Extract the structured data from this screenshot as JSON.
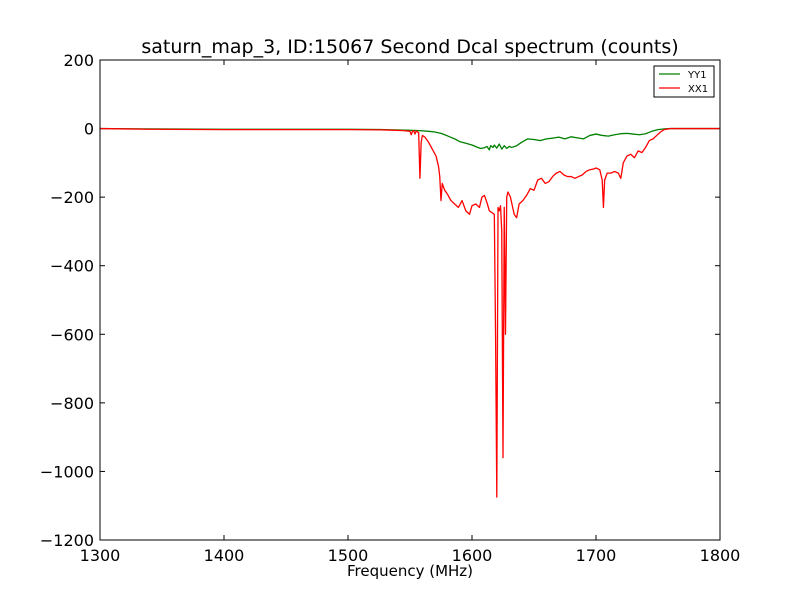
{
  "chart_data": {
    "type": "line",
    "title": "saturn_map_3, ID:15067 Second Dcal spectrum (counts)",
    "xlabel": "Frequency (MHz)",
    "ylabel": "",
    "xlim": [
      1300,
      1800
    ],
    "ylim": [
      -1200,
      200
    ],
    "xticks": [
      1300,
      1400,
      1500,
      1600,
      1700,
      1800
    ],
    "yticks": [
      200,
      0,
      -200,
      -400,
      -600,
      -800,
      -1000,
      -1200
    ],
    "grid": false,
    "legend_position": "top-right",
    "series": [
      {
        "name": "YY1",
        "color": "#008000",
        "points": [
          [
            1300,
            0
          ],
          [
            1340,
            -1
          ],
          [
            1400,
            -2
          ],
          [
            1450,
            -2
          ],
          [
            1500,
            -2
          ],
          [
            1530,
            -3
          ],
          [
            1550,
            -5
          ],
          [
            1558,
            -6
          ],
          [
            1565,
            -8
          ],
          [
            1570,
            -10
          ],
          [
            1575,
            -14
          ],
          [
            1578,
            -18
          ],
          [
            1582,
            -24
          ],
          [
            1586,
            -30
          ],
          [
            1590,
            -38
          ],
          [
            1595,
            -43
          ],
          [
            1600,
            -48
          ],
          [
            1604,
            -54
          ],
          [
            1607,
            -58
          ],
          [
            1610,
            -56
          ],
          [
            1612,
            -52
          ],
          [
            1614,
            -62
          ],
          [
            1615,
            -50
          ],
          [
            1617,
            -55
          ],
          [
            1618,
            -48
          ],
          [
            1620,
            -57
          ],
          [
            1622,
            -45
          ],
          [
            1624,
            -60
          ],
          [
            1626,
            -50
          ],
          [
            1628,
            -58
          ],
          [
            1630,
            -52
          ],
          [
            1632,
            -55
          ],
          [
            1636,
            -50
          ],
          [
            1640,
            -40
          ],
          [
            1645,
            -30
          ],
          [
            1650,
            -32
          ],
          [
            1655,
            -35
          ],
          [
            1660,
            -30
          ],
          [
            1665,
            -28
          ],
          [
            1670,
            -25
          ],
          [
            1675,
            -30
          ],
          [
            1680,
            -24
          ],
          [
            1685,
            -27
          ],
          [
            1690,
            -30
          ],
          [
            1695,
            -20
          ],
          [
            1700,
            -16
          ],
          [
            1705,
            -20
          ],
          [
            1710,
            -22
          ],
          [
            1715,
            -18
          ],
          [
            1720,
            -15
          ],
          [
            1725,
            -14
          ],
          [
            1730,
            -16
          ],
          [
            1735,
            -18
          ],
          [
            1740,
            -15
          ],
          [
            1745,
            -8
          ],
          [
            1750,
            -3
          ],
          [
            1755,
            -1
          ],
          [
            1760,
            0
          ],
          [
            1800,
            0
          ]
        ]
      },
      {
        "name": "XX1",
        "color": "#ff0000",
        "points": [
          [
            1300,
            0
          ],
          [
            1340,
            -2
          ],
          [
            1400,
            -3
          ],
          [
            1450,
            -3
          ],
          [
            1500,
            -3
          ],
          [
            1530,
            -4
          ],
          [
            1545,
            -6
          ],
          [
            1550,
            -8
          ],
          [
            1551,
            -18
          ],
          [
            1552,
            -8
          ],
          [
            1553,
            -6
          ],
          [
            1554,
            -16
          ],
          [
            1555,
            -7
          ],
          [
            1557,
            -12
          ],
          [
            1558,
            -145
          ],
          [
            1559,
            -40
          ],
          [
            1560,
            -20
          ],
          [
            1562,
            -25
          ],
          [
            1565,
            -40
          ],
          [
            1568,
            -60
          ],
          [
            1571,
            -80
          ],
          [
            1573,
            -110
          ],
          [
            1574,
            -140
          ],
          [
            1575,
            -210
          ],
          [
            1576,
            -160
          ],
          [
            1578,
            -180
          ],
          [
            1580,
            -190
          ],
          [
            1583,
            -210
          ],
          [
            1586,
            -220
          ],
          [
            1589,
            -230
          ],
          [
            1592,
            -210
          ],
          [
            1595,
            -240
          ],
          [
            1598,
            -250
          ],
          [
            1600,
            -225
          ],
          [
            1603,
            -220
          ],
          [
            1606,
            -230
          ],
          [
            1608,
            -200
          ],
          [
            1610,
            -195
          ],
          [
            1612,
            -215
          ],
          [
            1614,
            -240
          ],
          [
            1616,
            -245
          ],
          [
            1618,
            -250
          ],
          [
            1619,
            -600
          ],
          [
            1620,
            -1075
          ],
          [
            1621,
            -230
          ],
          [
            1622,
            -240
          ],
          [
            1623,
            -225
          ],
          [
            1624,
            -300
          ],
          [
            1625,
            -960
          ],
          [
            1626,
            -230
          ],
          [
            1627,
            -600
          ],
          [
            1628,
            -200
          ],
          [
            1629,
            -185
          ],
          [
            1631,
            -200
          ],
          [
            1634,
            -250
          ],
          [
            1636,
            -260
          ],
          [
            1638,
            -220
          ],
          [
            1641,
            -210
          ],
          [
            1644,
            -195
          ],
          [
            1647,
            -175
          ],
          [
            1650,
            -180
          ],
          [
            1653,
            -150
          ],
          [
            1656,
            -145
          ],
          [
            1659,
            -160
          ],
          [
            1662,
            -155
          ],
          [
            1665,
            -140
          ],
          [
            1668,
            -130
          ],
          [
            1671,
            -125
          ],
          [
            1674,
            -135
          ],
          [
            1677,
            -140
          ],
          [
            1680,
            -140
          ],
          [
            1683,
            -145
          ],
          [
            1686,
            -140
          ],
          [
            1689,
            -135
          ],
          [
            1692,
            -125
          ],
          [
            1695,
            -120
          ],
          [
            1698,
            -118
          ],
          [
            1700,
            -115
          ],
          [
            1703,
            -120
          ],
          [
            1705,
            -150
          ],
          [
            1706,
            -230
          ],
          [
            1707,
            -150
          ],
          [
            1709,
            -130
          ],
          [
            1712,
            -130
          ],
          [
            1715,
            -125
          ],
          [
            1718,
            -130
          ],
          [
            1720,
            -145
          ],
          [
            1722,
            -100
          ],
          [
            1725,
            -80
          ],
          [
            1728,
            -75
          ],
          [
            1731,
            -85
          ],
          [
            1734,
            -65
          ],
          [
            1737,
            -70
          ],
          [
            1740,
            -55
          ],
          [
            1743,
            -35
          ],
          [
            1746,
            -30
          ],
          [
            1749,
            -20
          ],
          [
            1752,
            -10
          ],
          [
            1755,
            -3
          ],
          [
            1760,
            0
          ],
          [
            1800,
            0
          ]
        ]
      }
    ]
  }
}
